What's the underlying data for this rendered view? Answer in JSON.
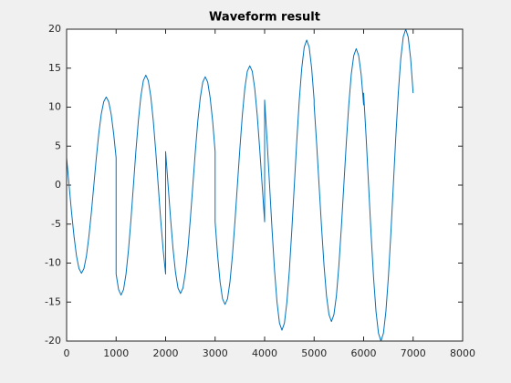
{
  "chart_data": {
    "type": "line",
    "title": "Waveform result",
    "x": [
      0,
      50,
      100,
      150,
      200,
      250,
      300,
      350,
      400,
      450,
      500,
      550,
      600,
      650,
      700,
      750,
      800,
      850,
      900,
      950,
      1000,
      1000,
      1050,
      1100,
      1150,
      1200,
      1250,
      1300,
      1350,
      1400,
      1450,
      1500,
      1550,
      1600,
      1650,
      1700,
      1750,
      1800,
      1850,
      1900,
      1950,
      2000,
      2000,
      2050,
      2100,
      2150,
      2200,
      2250,
      2300,
      2350,
      2400,
      2450,
      2500,
      2550,
      2600,
      2650,
      2700,
      2750,
      2800,
      2850,
      2900,
      2950,
      3000,
      3000,
      3050,
      3100,
      3150,
      3200,
      3250,
      3300,
      3350,
      3400,
      3450,
      3500,
      3550,
      3600,
      3650,
      3700,
      3750,
      3800,
      3850,
      3900,
      3950,
      4000,
      4000,
      4050,
      4100,
      4150,
      4200,
      4250,
      4300,
      4350,
      4400,
      4450,
      4500,
      4550,
      4600,
      4650,
      4700,
      4750,
      4800,
      4850,
      4900,
      4950,
      5000,
      5000,
      5050,
      5100,
      5150,
      5200,
      5250,
      5300,
      5350,
      5400,
      5450,
      5500,
      5550,
      5600,
      5650,
      5700,
      5750,
      5800,
      5850,
      5900,
      5950,
      6000,
      6000,
      6050,
      6100,
      6150,
      6200,
      6250,
      6300,
      6350,
      6400,
      6450,
      6500,
      6550,
      6600,
      6650,
      6700,
      6750,
      6800,
      6850,
      6900,
      6950,
      7000
    ],
    "series": [
      {
        "color": "#0072bd",
        "values": [
          3.5,
          0,
          -3.5,
          -6.6,
          -9.1,
          -10.7,
          -11.3,
          -10.7,
          -9.1,
          -6.6,
          -3.5,
          0,
          3.5,
          6.6,
          9.1,
          10.7,
          11.3,
          10.7,
          9.1,
          6.6,
          3.5,
          -11.4,
          -13.4,
          -14.1,
          -13.4,
          -11.4,
          -8.3,
          -4.4,
          0,
          4.4,
          8.3,
          11.4,
          13.4,
          14.1,
          13.4,
          11.4,
          8.3,
          4.4,
          0,
          -4.4,
          -8.3,
          -11.4,
          4.3,
          0,
          -4.3,
          -8.2,
          -11.2,
          -13.2,
          -13.9,
          -13.2,
          -11.2,
          -8.2,
          -4.3,
          0,
          4.3,
          8.2,
          11.2,
          13.2,
          13.9,
          13.2,
          11.2,
          8.2,
          4.3,
          -4.7,
          -9.0,
          -12.4,
          -14.6,
          -15.3,
          -14.6,
          -12.4,
          -9.0,
          -4.7,
          0,
          4.7,
          9.0,
          12.4,
          14.6,
          15.3,
          14.6,
          12.4,
          9.0,
          4.7,
          0,
          -4.7,
          10.9,
          5.7,
          0,
          -5.7,
          -10.9,
          -15.0,
          -17.7,
          -18.6,
          -17.7,
          -15.0,
          -10.9,
          -5.7,
          0,
          5.7,
          10.9,
          15.0,
          17.7,
          18.6,
          17.7,
          15.0,
          10.9,
          10.3,
          5.4,
          0,
          -5.4,
          -10.3,
          -14.2,
          -16.6,
          -17.5,
          -16.6,
          -14.2,
          -10.3,
          -5.4,
          0,
          5.4,
          10.3,
          14.2,
          16.6,
          17.5,
          16.6,
          14.2,
          10.3,
          11.8,
          6.2,
          0,
          -6.2,
          -11.8,
          -16.2,
          -19.0,
          -20,
          -19.0,
          -16.2,
          -11.8,
          -6.2,
          0,
          6.2,
          11.8,
          16.2,
          19.0,
          20,
          19.0,
          16.2,
          11.8
        ]
      }
    ],
    "xlim": [
      0,
      8000
    ],
    "xticks": [
      0,
      1000,
      2000,
      3000,
      4000,
      5000,
      6000,
      7000,
      8000
    ],
    "ylim": [
      -20,
      20
    ],
    "yticks": [
      -20,
      -15,
      -10,
      -5,
      0,
      5,
      10,
      15,
      20
    ],
    "grid": false
  }
}
